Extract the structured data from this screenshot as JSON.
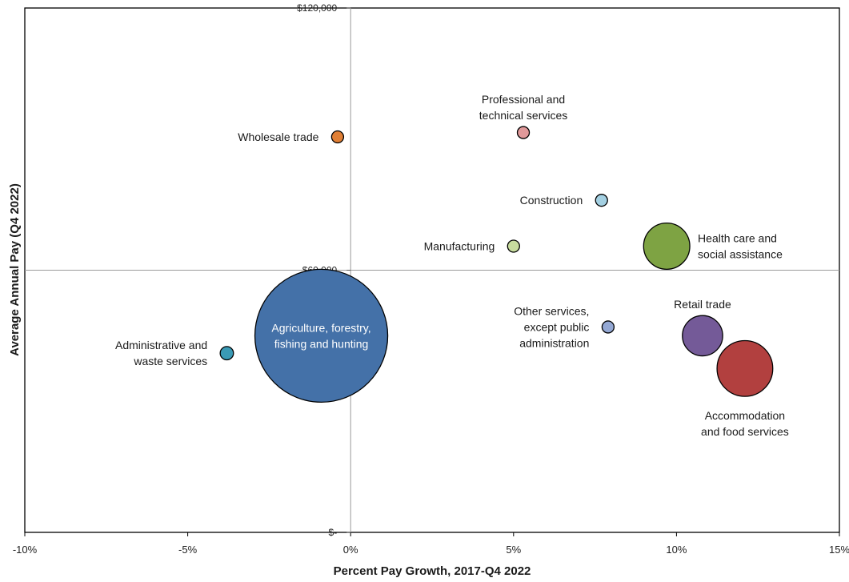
{
  "chart_data": {
    "type": "scatter",
    "subtype": "bubble",
    "title": "",
    "xlabel": "Percent Pay Growth, 2017-Q4 2022",
    "ylabel": "Average Annual Pay (Q4 2022)",
    "xlim": [
      -10,
      15
    ],
    "ylim": [
      0,
      120000
    ],
    "x_ticks": [
      {
        "value": -10,
        "label": "-10%"
      },
      {
        "value": -5,
        "label": "-5%"
      },
      {
        "value": 0,
        "label": "0%"
      },
      {
        "value": 5,
        "label": "5%"
      },
      {
        "value": 10,
        "label": "10%"
      },
      {
        "value": 15,
        "label": "15%"
      }
    ],
    "y_ticks": [
      {
        "value": 0,
        "label": "$-"
      },
      {
        "value": 60000,
        "label": "$60,000"
      },
      {
        "value": 120000,
        "label": "$120,000"
      }
    ],
    "reference_lines": {
      "x": 0,
      "y": 60000
    },
    "grid": false,
    "legend": "none",
    "series": [
      {
        "label": [
          "Agriculture, forestry,",
          "fishing and hunting"
        ],
        "x": -0.9,
        "y": 45000,
        "size": 100,
        "color": "#4471a8",
        "label_inside": true,
        "label_color": "#ffffff"
      },
      {
        "label": [
          "Administrative and",
          "waste services"
        ],
        "x": -3.8,
        "y": 41000,
        "size": 1.0,
        "color": "#3a9ab5",
        "label_pos": "left"
      },
      {
        "label": [
          "Wholesale trade"
        ],
        "x": -0.4,
        "y": 90500,
        "size": 0.45,
        "color": "#e07f35",
        "label_pos": "left"
      },
      {
        "label": [
          "Professional and",
          "technical services"
        ],
        "x": 5.3,
        "y": 91500,
        "size": 0.4,
        "color": "#e0999a",
        "label_pos": "above"
      },
      {
        "label": [
          "Construction"
        ],
        "x": 7.7,
        "y": 76000,
        "size": 0.7,
        "color": "#a4d0e2",
        "label_pos": "left"
      },
      {
        "label": [
          "Manufacturing"
        ],
        "x": 5.0,
        "y": 65500,
        "size": 0.35,
        "color": "#c8dc9e",
        "label_pos": "left"
      },
      {
        "label": [
          "Health care and",
          "social assistance"
        ],
        "x": 9.7,
        "y": 65500,
        "size": 12.1,
        "color": "#7ea343",
        "label_pos": "right"
      },
      {
        "label": [
          "Other services,",
          "except public",
          "administration"
        ],
        "x": 7.9,
        "y": 47000,
        "size": 0.4,
        "color": "#94a8d4",
        "label_pos": "left"
      },
      {
        "label": [
          "Retail trade"
        ],
        "x": 10.8,
        "y": 45000,
        "size": 9.2,
        "color": "#745a98",
        "label_pos": "above"
      },
      {
        "label": [
          "Accommodation",
          "and food services"
        ],
        "x": 12.1,
        "y": 37500,
        "size": 17.6,
        "color": "#b2403f",
        "label_pos": "below"
      }
    ]
  }
}
